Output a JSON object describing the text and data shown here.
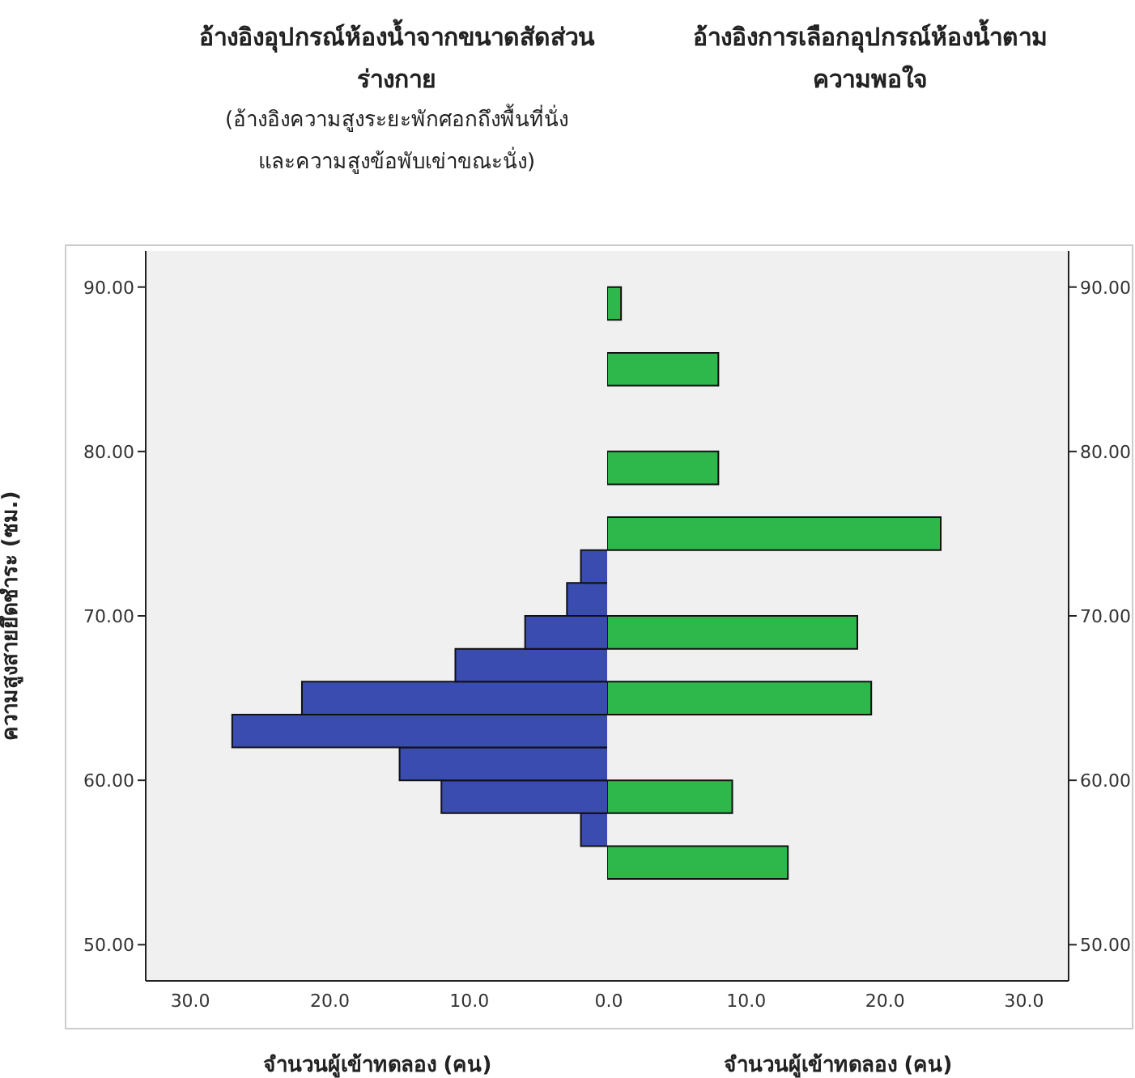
{
  "chart_data": [
    {
      "type": "histogram",
      "orientation": "horizontal",
      "title": "อ้างอิงอุปกรณ์ห้องน้ำจากขนาดสัดส่วนร่างกาย",
      "subtitle": "(อ้างอิงความสูงระยะพักศอกถึงพื้นที่นั่งและความสูงข้อพับเข่าขณะนั่ง)",
      "xlabel": "จำนวนผู้เข้าทดลอง (คน)",
      "ylabel": "ความสูงสายยึดชำระ (ซม.)",
      "bins": [
        54,
        56,
        58,
        60,
        62,
        64,
        66,
        68,
        70,
        72,
        74,
        76,
        78,
        80,
        82,
        84,
        86,
        88,
        90
      ],
      "values": [
        0,
        2,
        12,
        15,
        27,
        22,
        11,
        6,
        3,
        2,
        0,
        0,
        0,
        0,
        0,
        0,
        0,
        0
      ],
      "color": "#3a4cb0",
      "xlim": [
        33.2,
        0
      ],
      "xticks": [
        {
          "value": 30,
          "label": "30.0"
        },
        {
          "value": 20,
          "label": "20.0"
        },
        {
          "value": 10,
          "label": "10.0"
        },
        {
          "value": 0,
          "label": "0.0"
        }
      ],
      "ylim": [
        47.8,
        92.2
      ],
      "yticks": [
        {
          "value": 50,
          "label": "50.00"
        },
        {
          "value": 60,
          "label": "60.00"
        },
        {
          "value": 70,
          "label": "70.00"
        },
        {
          "value": 80,
          "label": "80.00"
        },
        {
          "value": 90,
          "label": "90.00"
        }
      ]
    },
    {
      "type": "histogram",
      "orientation": "horizontal",
      "title": "อ้างอิงการเลือกอุปกรณ์ห้องน้ำตามความพอใจ",
      "xlabel": "จำนวนผู้เข้าทดลอง (คน)",
      "bins": [
        54,
        56,
        58,
        60,
        62,
        64,
        66,
        68,
        70,
        72,
        74,
        76,
        78,
        80,
        82,
        84,
        86,
        88,
        90
      ],
      "values": [
        13,
        0,
        9,
        0,
        0,
        19,
        0,
        18,
        0,
        0,
        24,
        0,
        8,
        0,
        0,
        8,
        0,
        1
      ],
      "color": "#2eb84b",
      "xlim": [
        0,
        33.2
      ],
      "xticks": [
        {
          "value": 0,
          "label": null
        },
        {
          "value": 10,
          "label": "10.0"
        },
        {
          "value": 20,
          "label": "20.0"
        },
        {
          "value": 30,
          "label": "30.0"
        }
      ],
      "ylim": [
        47.8,
        92.2
      ],
      "yticks": [
        {
          "value": 50,
          "label": "50.00"
        },
        {
          "value": 60,
          "label": "60.00"
        },
        {
          "value": 70,
          "label": "70.00"
        },
        {
          "value": 80,
          "label": "80.00"
        },
        {
          "value": 90,
          "label": "90.00"
        }
      ]
    }
  ]
}
